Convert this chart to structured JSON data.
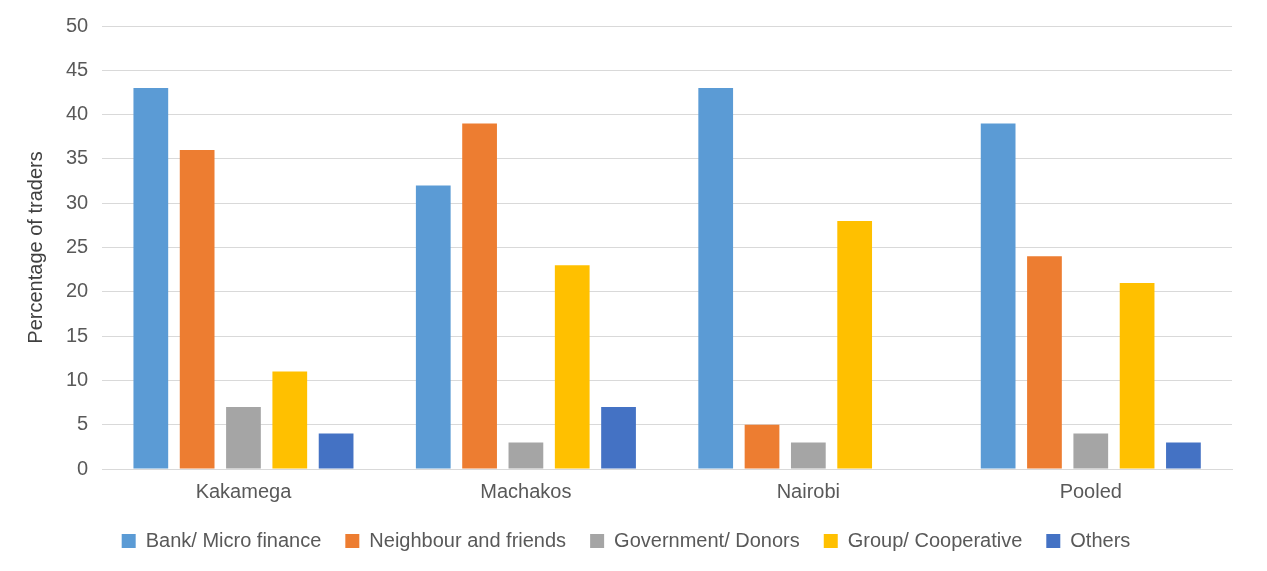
{
  "chart_data": {
    "type": "bar",
    "ylabel": "Percentage of traders",
    "categories": [
      "Kakamega",
      "Machakos",
      "Nairobi",
      "Pooled"
    ],
    "series": [
      {
        "name": "Bank/ Micro finance",
        "color": "#5b9bd5",
        "values": [
          43,
          32,
          43,
          39
        ]
      },
      {
        "name": "Neighbour and friends",
        "color": "#ed7d31",
        "values": [
          36,
          39,
          5,
          24
        ]
      },
      {
        "name": "Government/ Donors",
        "color": "#a5a5a5",
        "values": [
          7,
          3,
          3,
          4
        ]
      },
      {
        "name": "Group/ Cooperative",
        "color": "#ffc000",
        "values": [
          11,
          23,
          28,
          21
        ]
      },
      {
        "name": "Others",
        "color": "#4472c4",
        "values": [
          4,
          7,
          0,
          3
        ]
      }
    ],
    "ylim": [
      0,
      50
    ],
    "yticks": [
      0,
      5,
      10,
      15,
      20,
      25,
      30,
      35,
      40,
      45,
      50
    ],
    "grid": "y",
    "legend": "bottom"
  }
}
